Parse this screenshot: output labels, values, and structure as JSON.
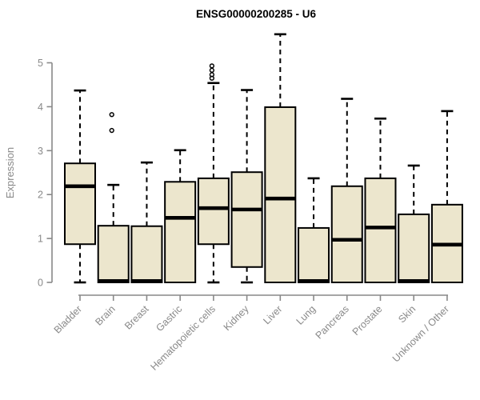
{
  "chart_data": {
    "type": "boxplot",
    "title": "ENSG00000200285 - U6",
    "xlabel": "",
    "ylabel": "Expression",
    "ylim": [
      0,
      5.65
    ],
    "yticks": [
      0,
      1,
      2,
      3,
      4,
      5
    ],
    "grid": false,
    "legend": null,
    "categories": [
      "Bladder",
      "Brain",
      "Breast",
      "Gastric",
      "Hematopoietic cells",
      "Kidney",
      "Liver",
      "Lung",
      "Pancreas",
      "Prostate",
      "Skin",
      "Unknown / Other"
    ],
    "series": [
      {
        "category": "Bladder",
        "whisker_low": 0,
        "q1": 0.87,
        "median": 2.19,
        "q3": 2.71,
        "whisker_high": 4.37,
        "outliers": []
      },
      {
        "category": "Brain",
        "whisker_low": 0,
        "q1": 0,
        "median": 0.03,
        "q3": 1.29,
        "whisker_high": 2.22,
        "outliers": [
          3.46,
          3.82
        ]
      },
      {
        "category": "Breast",
        "whisker_low": 0,
        "q1": 0,
        "median": 0.03,
        "q3": 1.28,
        "whisker_high": 2.73,
        "outliers": []
      },
      {
        "category": "Gastric",
        "whisker_low": 0,
        "q1": 0,
        "median": 1.47,
        "q3": 2.29,
        "whisker_high": 3.01,
        "outliers": []
      },
      {
        "category": "Hematopoietic cells",
        "whisker_low": 0,
        "q1": 0.87,
        "median": 1.69,
        "q3": 2.37,
        "whisker_high": 4.54,
        "outliers": [
          4.65,
          4.73,
          4.83,
          4.93
        ]
      },
      {
        "category": "Kidney",
        "whisker_low": 0,
        "q1": 0.35,
        "median": 1.66,
        "q3": 2.51,
        "whisker_high": 4.38,
        "outliers": []
      },
      {
        "category": "Liver",
        "whisker_low": 0,
        "q1": 0,
        "median": 1.91,
        "q3": 3.99,
        "whisker_high": 5.65,
        "outliers": []
      },
      {
        "category": "Lung",
        "whisker_low": 0,
        "q1": 0,
        "median": 0.03,
        "q3": 1.24,
        "whisker_high": 2.37,
        "outliers": []
      },
      {
        "category": "Pancreas",
        "whisker_low": 0,
        "q1": 0,
        "median": 0.97,
        "q3": 2.19,
        "whisker_high": 4.18,
        "outliers": []
      },
      {
        "category": "Prostate",
        "whisker_low": 0,
        "q1": 0,
        "median": 1.25,
        "q3": 2.37,
        "whisker_high": 3.73,
        "outliers": []
      },
      {
        "category": "Skin",
        "whisker_low": 0,
        "q1": 0,
        "median": 0.03,
        "q3": 1.55,
        "whisker_high": 2.66,
        "outliers": []
      },
      {
        "category": "Unknown / Other",
        "whisker_low": 0,
        "q1": 0,
        "median": 0.86,
        "q3": 1.77,
        "whisker_high": 3.9,
        "outliers": []
      }
    ],
    "colors": {
      "box_fill": "#ECE6CD",
      "box_stroke": "#000000",
      "median": "#000000",
      "whisker": "#000000",
      "outlier": "#000000",
      "axis": "#898989",
      "tick_label": "#898989",
      "title": "#000000",
      "background": "#ffffff"
    }
  }
}
